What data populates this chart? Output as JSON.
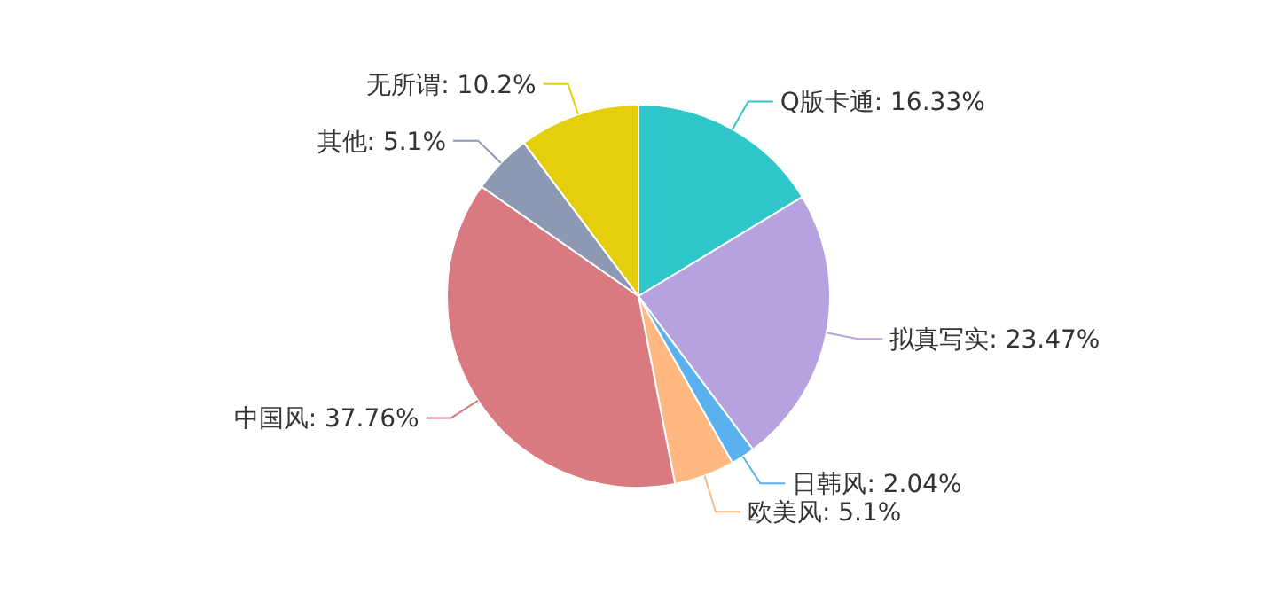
{
  "chart_data": {
    "type": "pie",
    "categories": [
      "Q版卡通",
      "拟真写实",
      "日韩风",
      "欧美风",
      "中国风",
      "其他",
      "无所谓"
    ],
    "values": [
      16.33,
      23.47,
      2.04,
      5.1,
      37.76,
      5.1,
      10.2
    ],
    "value_labels": [
      ": 16.33%",
      ": 23.47%",
      ": 2.04%",
      ": 5.1%",
      ": 37.76%",
      ": 5.1%",
      ": 10.2%"
    ],
    "colors": [
      "#2ec7c9",
      "#b6a2de",
      "#5ab1ef",
      "#ffb980",
      "#d87a80",
      "#8d98b3",
      "#e5cf0d"
    ]
  }
}
